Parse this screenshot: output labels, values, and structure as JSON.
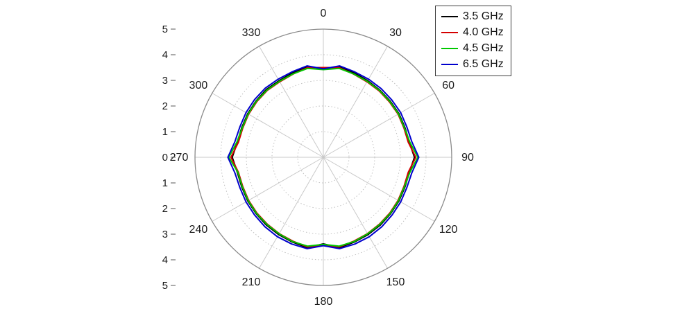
{
  "figure": {
    "background_color": "#ffffff"
  },
  "chart_data": {
    "type": "line",
    "subtype": "polar-radiation-pattern",
    "title": "",
    "angle_unit": "degrees",
    "angle_zero_position": "top",
    "angle_direction": "clockwise",
    "radial_range": [
      0,
      5
    ],
    "radial_axis_labels": [
      "5",
      "4",
      "3",
      "2",
      "1",
      "0",
      "1",
      "2",
      "3",
      "4",
      "5"
    ],
    "angle_tick_step": 30,
    "angle_labels": [
      "0",
      "30",
      "60",
      "90",
      "120",
      "150",
      "180",
      "210",
      "240",
      "270",
      "300",
      "330"
    ],
    "grid": true,
    "grid_circle_radii": [
      1,
      2,
      3,
      4
    ],
    "outer_circle_radius": 5,
    "legend_position": "top-right",
    "colors": {
      "outer_circle": "#8a8a8a",
      "grid_circles": "#c0c0c0",
      "spokes": "#c9c9c9",
      "tick_text": "#1a1a1a"
    },
    "angles_deg": [
      0,
      10,
      20,
      30,
      40,
      50,
      60,
      70,
      80,
      90,
      100,
      110,
      120,
      130,
      140,
      150,
      160,
      170,
      180,
      190,
      200,
      210,
      220,
      230,
      240,
      250,
      260,
      270,
      280,
      290,
      300,
      310,
      320,
      330,
      340,
      350
    ],
    "series": [
      {
        "name": "3.5 GHz",
        "color": "#000000",
        "values": [
          3.45,
          3.6,
          3.5,
          3.45,
          3.42,
          3.4,
          3.4,
          3.38,
          3.4,
          3.55,
          3.4,
          3.38,
          3.4,
          3.42,
          3.45,
          3.48,
          3.52,
          3.58,
          3.38,
          3.58,
          3.52,
          3.48,
          3.45,
          3.42,
          3.4,
          3.38,
          3.4,
          3.55,
          3.4,
          3.38,
          3.4,
          3.42,
          3.45,
          3.45,
          3.5,
          3.6
        ]
      },
      {
        "name": "4.0 GHz",
        "color": "#d40000",
        "values": [
          3.5,
          3.55,
          3.45,
          3.4,
          3.38,
          3.36,
          3.36,
          3.34,
          3.36,
          3.6,
          3.36,
          3.34,
          3.36,
          3.38,
          3.4,
          3.44,
          3.48,
          3.55,
          3.42,
          3.55,
          3.48,
          3.44,
          3.4,
          3.38,
          3.36,
          3.34,
          3.36,
          3.6,
          3.36,
          3.34,
          3.36,
          3.38,
          3.4,
          3.4,
          3.45,
          3.55
        ]
      },
      {
        "name": "4.5 GHz",
        "color": "#00c800",
        "values": [
          3.42,
          3.52,
          3.46,
          3.42,
          3.4,
          3.38,
          3.38,
          3.36,
          3.42,
          3.68,
          3.42,
          3.36,
          3.38,
          3.4,
          3.42,
          3.45,
          3.5,
          3.52,
          3.4,
          3.52,
          3.5,
          3.45,
          3.42,
          3.4,
          3.38,
          3.36,
          3.38,
          3.68,
          3.42,
          3.36,
          3.38,
          3.4,
          3.42,
          3.42,
          3.46,
          3.52
        ]
      },
      {
        "name": "6.5 GHz",
        "color": "#0000cd",
        "values": [
          3.45,
          3.62,
          3.55,
          3.52,
          3.5,
          3.48,
          3.48,
          3.46,
          3.5,
          3.72,
          3.5,
          3.46,
          3.48,
          3.5,
          3.54,
          3.58,
          3.6,
          3.62,
          3.45,
          3.62,
          3.6,
          3.58,
          3.54,
          3.5,
          3.48,
          3.46,
          3.5,
          3.72,
          3.5,
          3.46,
          3.48,
          3.5,
          3.52,
          3.52,
          3.55,
          3.62
        ]
      }
    ]
  }
}
